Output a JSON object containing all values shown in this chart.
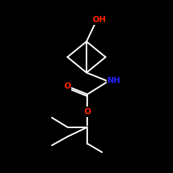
{
  "background_color": "#000000",
  "bond_color": "#ffffff",
  "atom_colors": {
    "O": "#ff2200",
    "N": "#2222ff",
    "C": "#ffffff"
  },
  "figsize": [
    2.5,
    2.5
  ],
  "dpi": 100,
  "lw": 1.6
}
